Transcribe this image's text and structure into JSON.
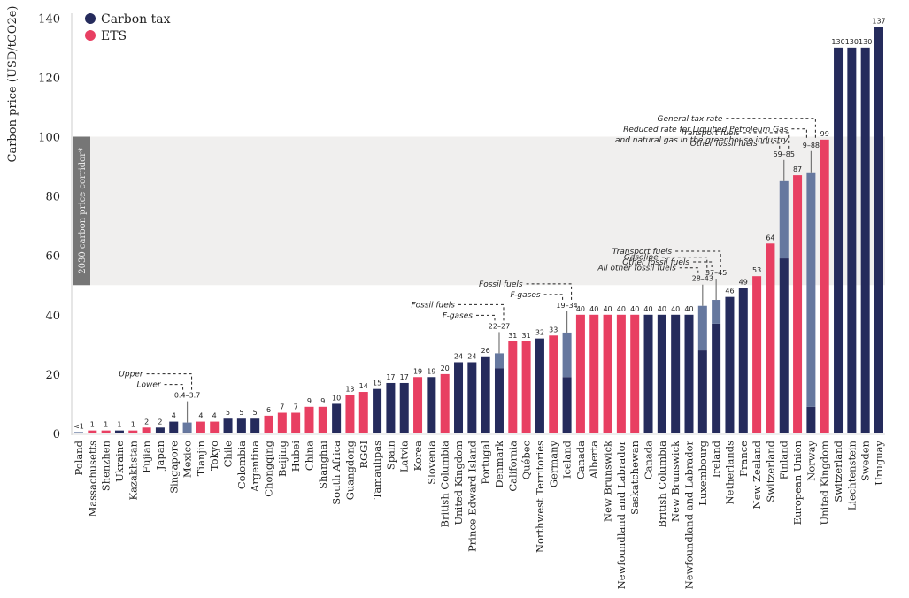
{
  "chart_data": {
    "type": "bar",
    "title": "",
    "xlabel": "",
    "ylabel": "Carbon price (USD/tCO2e)",
    "ylim": [
      0,
      140
    ],
    "yticks": [
      0,
      20,
      40,
      60,
      80,
      100,
      120,
      140
    ],
    "grid": false,
    "legend": {
      "placement": "top-left",
      "entries": [
        {
          "name": "Carbon tax",
          "color": "#252b5c"
        },
        {
          "name": "ETS",
          "color": "#e83f62"
        }
      ]
    },
    "colors": {
      "tax": "#252b5c",
      "ets": "#e83f62",
      "range": "#66789f",
      "corridor_band": "#f0efee",
      "corridor_label_bg": "#767676"
    },
    "corridor": {
      "label": "2030 carbon price corridor*",
      "range": [
        50,
        100
      ]
    },
    "bars": [
      {
        "category": "Poland",
        "type": "range",
        "low": 0,
        "value": 0.5,
        "label": "<1"
      },
      {
        "category": "Massachusetts",
        "type": "ets",
        "value": 1,
        "label": "1"
      },
      {
        "category": "Shenzhen",
        "type": "ets",
        "value": 1,
        "label": "1"
      },
      {
        "category": "Ukraine",
        "type": "tax",
        "value": 1,
        "label": "1"
      },
      {
        "category": "Kazakhstan",
        "type": "ets",
        "value": 1,
        "label": "1"
      },
      {
        "category": "Fujian",
        "type": "ets",
        "value": 2,
        "label": "2"
      },
      {
        "category": "Japan",
        "type": "tax",
        "value": 2,
        "label": "2"
      },
      {
        "category": "Singapore",
        "type": "tax",
        "value": 4,
        "label": "4"
      },
      {
        "category": "Mexico",
        "type": "tax",
        "low": 0.4,
        "value": 3.7,
        "label": "0.4–3.7",
        "ann": [
          "Upper",
          "Lower"
        ]
      },
      {
        "category": "Tianjin",
        "type": "ets",
        "value": 4,
        "label": "4"
      },
      {
        "category": "Tokyo",
        "type": "ets",
        "value": 4,
        "label": "4"
      },
      {
        "category": "Chile",
        "type": "tax",
        "value": 5,
        "label": "5"
      },
      {
        "category": "Colombia",
        "type": "tax",
        "value": 5,
        "label": "5"
      },
      {
        "category": "Argentina",
        "type": "tax",
        "value": 5,
        "label": "5"
      },
      {
        "category": "Chongqing",
        "type": "ets",
        "value": 6,
        "label": "6"
      },
      {
        "category": "Beijing",
        "type": "ets",
        "value": 7,
        "label": "7"
      },
      {
        "category": "Hubei",
        "type": "ets",
        "value": 7,
        "label": "7"
      },
      {
        "category": "China",
        "type": "ets",
        "value": 9,
        "label": "9"
      },
      {
        "category": "Shanghai",
        "type": "ets",
        "value": 9,
        "label": "9"
      },
      {
        "category": "South Africa",
        "type": "tax",
        "value": 10,
        "label": "10"
      },
      {
        "category": "Guangdong",
        "type": "ets",
        "value": 13,
        "label": "13"
      },
      {
        "category": "RGGI",
        "type": "ets",
        "value": 14,
        "label": "14"
      },
      {
        "category": "Tamaulipas",
        "type": "tax",
        "value": 15,
        "label": "15"
      },
      {
        "category": "Spain",
        "type": "tax",
        "value": 17,
        "label": "17"
      },
      {
        "category": "Latvia",
        "type": "tax",
        "value": 17,
        "label": "17"
      },
      {
        "category": "Korea",
        "type": "ets",
        "value": 19,
        "label": "19"
      },
      {
        "category": "Slovenia",
        "type": "tax",
        "value": 19,
        "label": "19"
      },
      {
        "category": "British Columbia",
        "type": "ets",
        "value": 20,
        "label": "20"
      },
      {
        "category": "United Kingdom",
        "type": "tax",
        "value": 24,
        "label": "24"
      },
      {
        "category": "Prince Edward Island",
        "type": "tax",
        "value": 24,
        "label": "24"
      },
      {
        "category": "Portugal",
        "type": "tax",
        "value": 26,
        "label": "26"
      },
      {
        "category": "Denmark",
        "type": "tax",
        "low": 22,
        "value": 27,
        "label": "22–27",
        "ann": [
          "Fossil fuels",
          "F-gases"
        ]
      },
      {
        "category": "California",
        "type": "ets",
        "value": 31,
        "label": "31"
      },
      {
        "category": "Québec",
        "type": "ets",
        "value": 31,
        "label": "31"
      },
      {
        "category": "Northwest Territories",
        "type": "tax",
        "value": 32,
        "label": "32"
      },
      {
        "category": "Germany",
        "type": "ets",
        "value": 33,
        "label": "33"
      },
      {
        "category": "Iceland",
        "type": "tax",
        "low": 19,
        "value": 34,
        "label": "19–34",
        "ann": [
          "Fossil fuels",
          "F-gases"
        ]
      },
      {
        "category": "Canada",
        "type": "ets",
        "value": 40,
        "label": "40"
      },
      {
        "category": "Alberta",
        "type": "ets",
        "value": 40,
        "label": "40"
      },
      {
        "category": "New Brunswick",
        "type": "ets",
        "value": 40,
        "label": "40"
      },
      {
        "category": "Newfoundland and Labrador",
        "type": "ets",
        "value": 40,
        "label": "40"
      },
      {
        "category": "Saskatchewan",
        "type": "ets",
        "value": 40,
        "label": "40"
      },
      {
        "category": "Canada",
        "type": "tax",
        "value": 40,
        "label": "40"
      },
      {
        "category": "British Columbia",
        "type": "tax",
        "value": 40,
        "label": "40"
      },
      {
        "category": "New Brunswick",
        "type": "tax",
        "value": 40,
        "label": "40"
      },
      {
        "category": "Newfoundland and Labrador",
        "type": "tax",
        "value": 40,
        "label": "40"
      },
      {
        "category": "Luxembourg",
        "type": "tax",
        "low": 28,
        "value": 43,
        "label": "28–43",
        "ann": [
          "Gasoline",
          "All other fossil fuels"
        ]
      },
      {
        "category": "Ireland",
        "type": "tax",
        "low": 37,
        "value": 45,
        "label": "37–45",
        "ann": [
          "Transport fuels",
          "Other fossil fuels"
        ]
      },
      {
        "category": "Netherlands",
        "type": "tax",
        "value": 46,
        "label": "46"
      },
      {
        "category": "France",
        "type": "tax",
        "value": 49,
        "label": "49"
      },
      {
        "category": "New Zealand",
        "type": "ets",
        "value": 53,
        "label": "53"
      },
      {
        "category": "Switzerland",
        "type": "ets",
        "value": 64,
        "label": "64"
      },
      {
        "category": "Finland",
        "type": "tax",
        "low": 59,
        "value": 85,
        "label": "59–85",
        "ann": [
          "Transport fuels",
          "Other fossil fuels"
        ]
      },
      {
        "category": "European Union",
        "type": "ets",
        "value": 87,
        "label": "87"
      },
      {
        "category": "Norway",
        "type": "tax",
        "low": 9,
        "value": 88,
        "label": "9–88",
        "ann": [
          "General tax rate",
          "Reduced rate for Liquified Petroleum Gas",
          "and natural gas in the greenhouse industry"
        ]
      },
      {
        "category": "United Kingdom",
        "type": "ets",
        "value": 99,
        "label": "99"
      },
      {
        "category": "Switzerland",
        "type": "tax",
        "value": 130,
        "label": "130"
      },
      {
        "category": "Liechtenstein",
        "type": "tax",
        "value": 130,
        "label": "130"
      },
      {
        "category": "Sweden",
        "type": "tax",
        "value": 130,
        "label": "130"
      },
      {
        "category": "Uruguay",
        "type": "tax",
        "value": 137,
        "label": "137"
      }
    ]
  }
}
